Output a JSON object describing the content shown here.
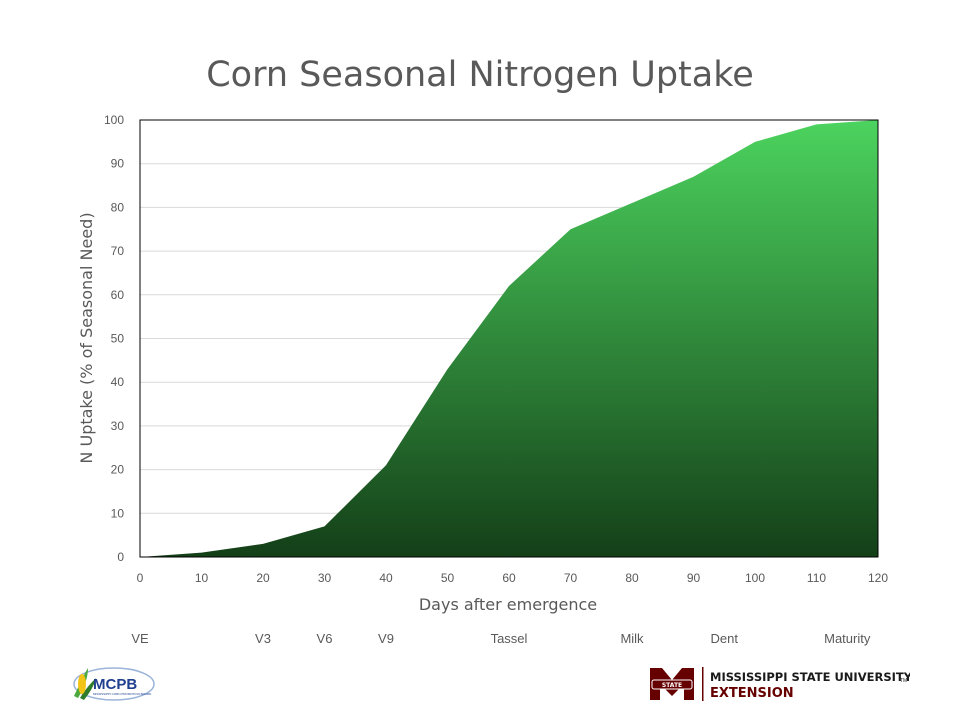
{
  "chart_data": {
    "type": "area",
    "title": "Corn Seasonal Nitrogen Uptake",
    "xlabel": "Days after emergence",
    "ylabel": "N Uptake (% of Seasonal Need)",
    "xlim": [
      0,
      120
    ],
    "ylim": [
      0,
      100
    ],
    "xticks": [
      0,
      10,
      20,
      30,
      40,
      50,
      60,
      70,
      80,
      90,
      100,
      110,
      120
    ],
    "yticks": [
      0,
      10,
      20,
      30,
      40,
      50,
      60,
      70,
      80,
      90,
      100
    ],
    "grid": true,
    "x": [
      0,
      10,
      20,
      30,
      40,
      50,
      60,
      70,
      80,
      90,
      100,
      110,
      120
    ],
    "series": [
      {
        "values": [
          0,
          1,
          3,
          7,
          21,
          43,
          62,
          75,
          81,
          87,
          95,
          99,
          100
        ]
      }
    ],
    "growth_stages": [
      {
        "label": "VE",
        "day": 0
      },
      {
        "label": "V3",
        "day": 20
      },
      {
        "label": "V6",
        "day": 30
      },
      {
        "label": "V9",
        "day": 40
      },
      {
        "label": "Tassel",
        "day": 60
      },
      {
        "label": "Milk",
        "day": 80
      },
      {
        "label": "Dent",
        "day": 95
      },
      {
        "label": "Maturity",
        "day": 115
      }
    ],
    "colors": {
      "fill_top": "#4cd35e",
      "fill_bottom": "#143f18",
      "grid": "#d9d9d9",
      "axis": "#000000",
      "text": "#595959"
    }
  },
  "logos": {
    "mcpb": {
      "text": "MCPB",
      "subtitle": "MISSISSIPPI CORN PROMOTION BOARD"
    },
    "msu": {
      "name": "MISSISSIPPI STATE UNIVERSITY",
      "trademark": "TM",
      "extension": "EXTENSION",
      "seal_text": "STATE",
      "color": "#660000"
    }
  }
}
